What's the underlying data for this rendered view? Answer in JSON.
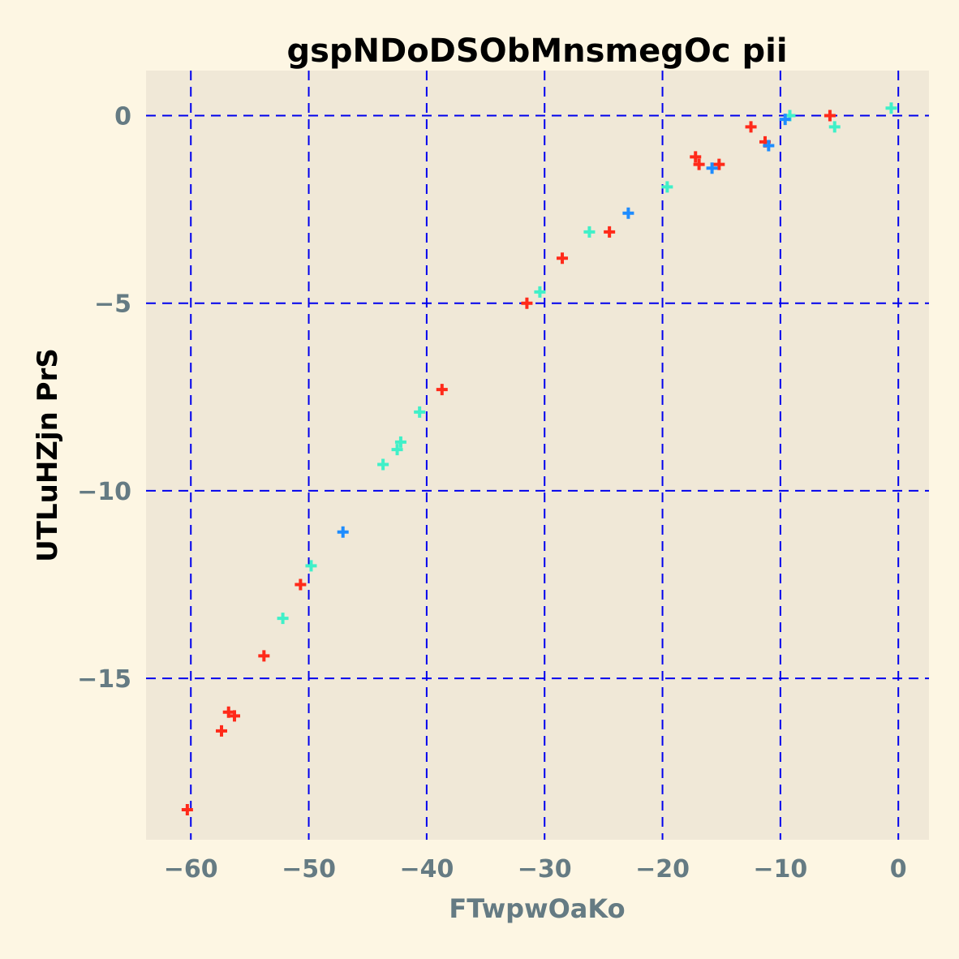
{
  "chart_data": {
    "type": "scatter",
    "title": "gspNDoDSObMnsmegOc pii",
    "xlabel": "FTwpwOaKo",
    "ylabel": "UTLuHZjn PrS",
    "xlim": [
      -63.8,
      2.6
    ],
    "ylim": [
      -19.3,
      1.2
    ],
    "xticks": [
      -60,
      -50,
      -40,
      -30,
      -20,
      -10,
      0
    ],
    "yticks": [
      0,
      -5,
      -10,
      -15
    ],
    "xtick_labels": [
      "−60",
      "−50",
      "−40",
      "−30",
      "−20",
      "−10",
      "0"
    ],
    "ytick_labels": [
      "0",
      "−5",
      "−10",
      "−15"
    ],
    "grid": true,
    "marker": "plus",
    "colors": {
      "background": "#fdf6e3",
      "plot_area": "#f0e8d7",
      "grid": "#0000ee"
    },
    "series": [
      {
        "color": "#ff2a1a",
        "points": [
          [
            -60.3,
            -18.5
          ],
          [
            -57.4,
            -16.4
          ],
          [
            -56.8,
            -15.9
          ],
          [
            -56.3,
            -16.0
          ],
          [
            -53.8,
            -14.4
          ],
          [
            -50.7,
            -12.5
          ],
          [
            -38.7,
            -7.3
          ],
          [
            -31.5,
            -5.0
          ],
          [
            -28.5,
            -3.8
          ],
          [
            -24.5,
            -3.1
          ],
          [
            -17.2,
            -1.1
          ],
          [
            -16.9,
            -1.3
          ],
          [
            -15.2,
            -1.3
          ],
          [
            -12.5,
            -0.3
          ],
          [
            -11.3,
            -0.7
          ],
          [
            -5.8,
            0.0
          ]
        ]
      },
      {
        "color": "#40f0c8",
        "points": [
          [
            -52.2,
            -13.4
          ],
          [
            -49.8,
            -12.0
          ],
          [
            -43.7,
            -9.3
          ],
          [
            -42.5,
            -8.9
          ],
          [
            -42.2,
            -8.7
          ],
          [
            -40.6,
            -7.9
          ],
          [
            -30.4,
            -4.7
          ],
          [
            -26.2,
            -3.1
          ],
          [
            -19.6,
            -1.9
          ],
          [
            -9.2,
            0.0
          ],
          [
            -5.4,
            -0.3
          ],
          [
            -0.6,
            0.2
          ]
        ]
      },
      {
        "color": "#1e8cff",
        "points": [
          [
            -47.1,
            -11.1
          ],
          [
            -22.9,
            -2.6
          ],
          [
            -15.8,
            -1.4
          ],
          [
            -11.0,
            -0.8
          ],
          [
            -9.6,
            -0.1
          ]
        ]
      }
    ]
  }
}
